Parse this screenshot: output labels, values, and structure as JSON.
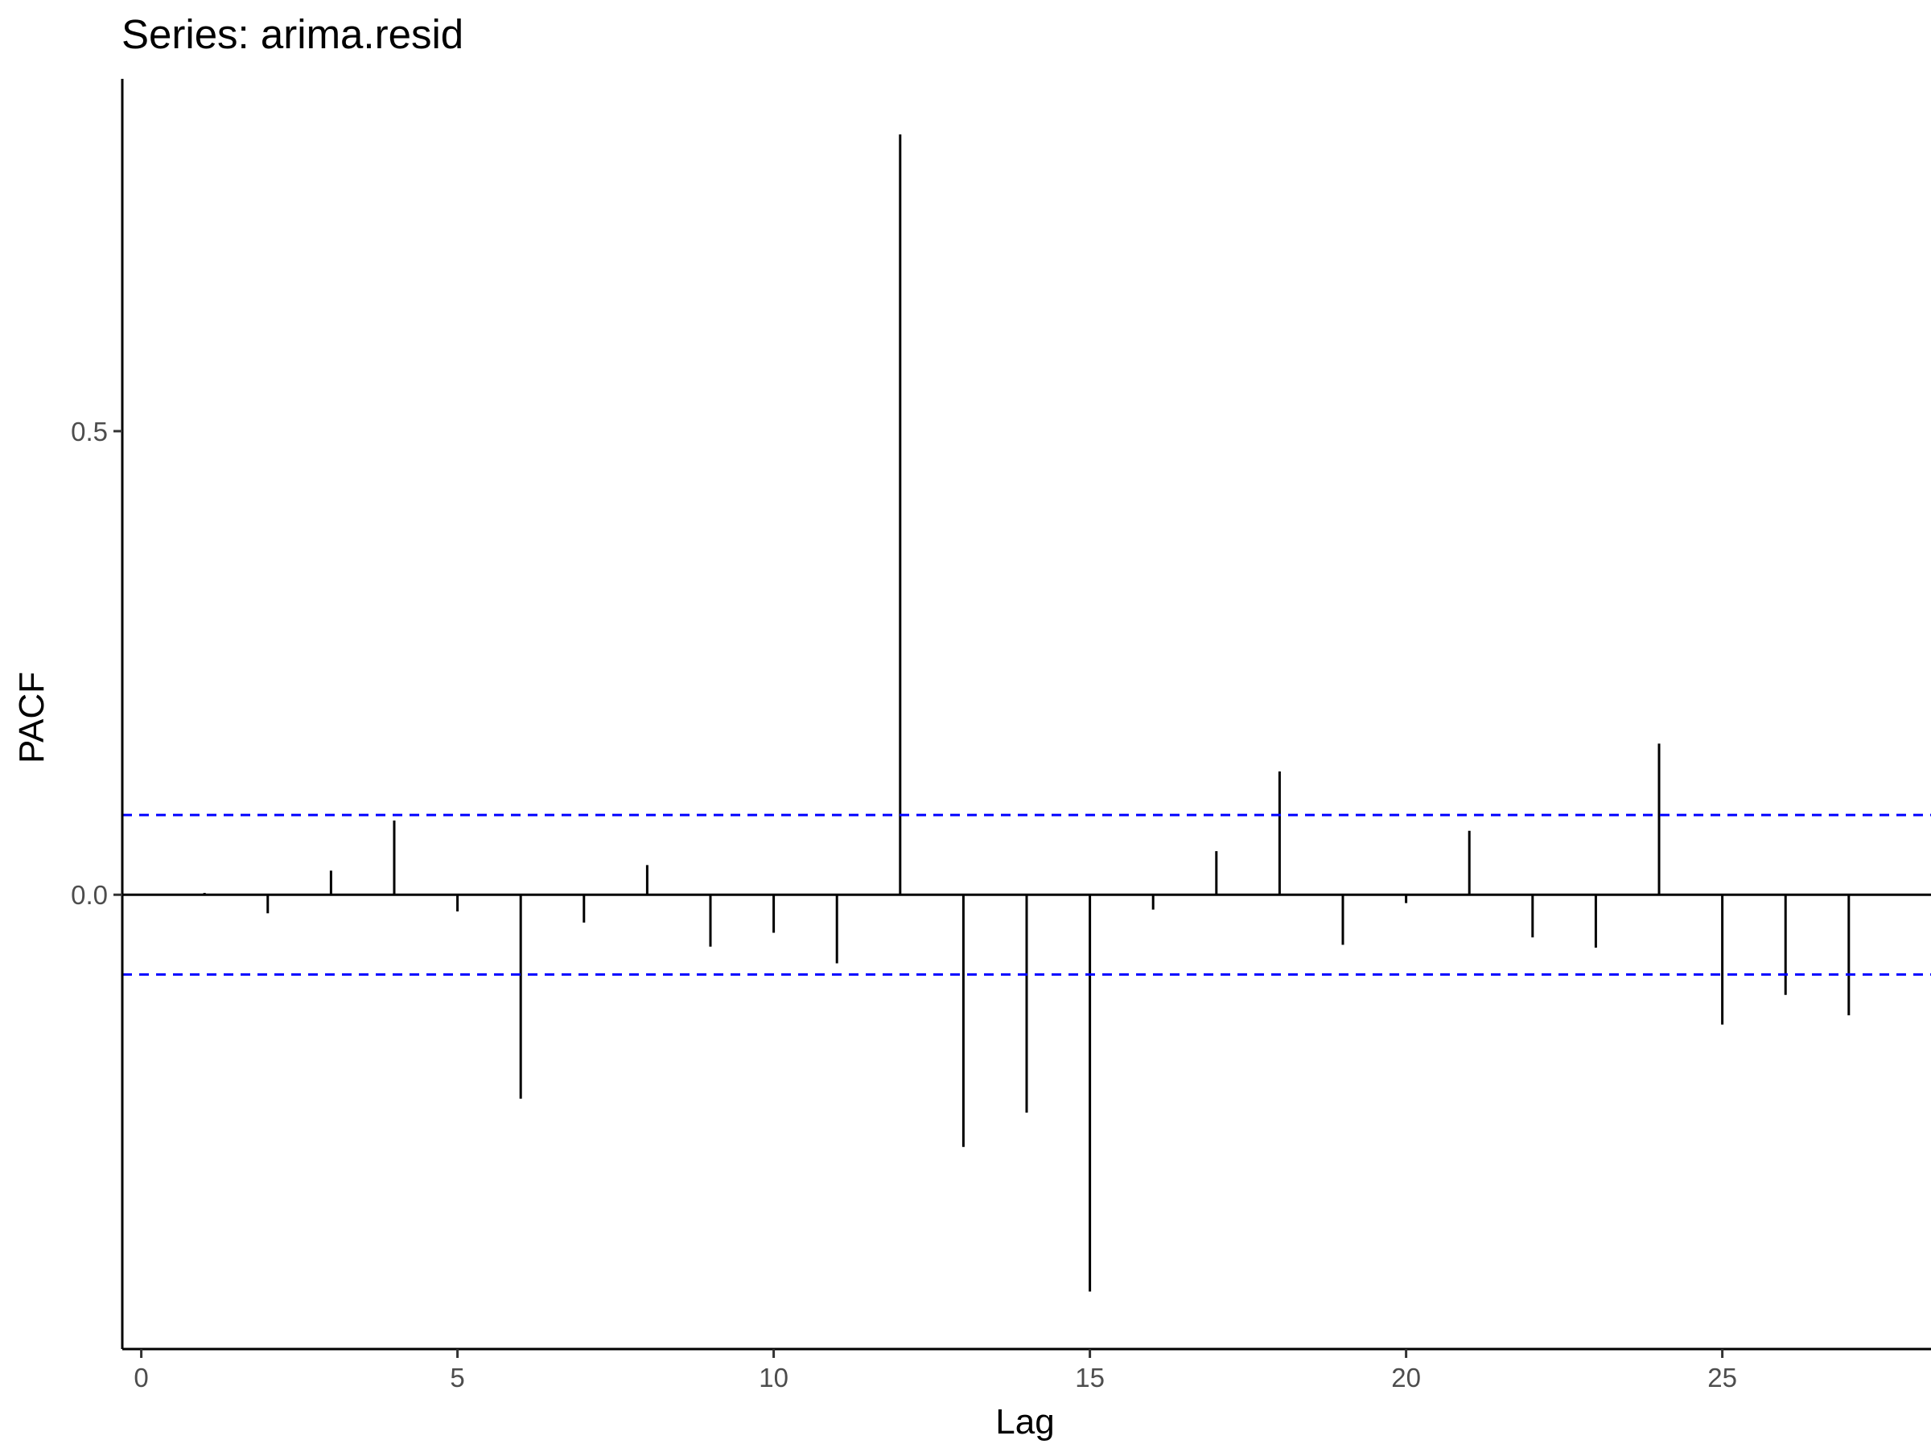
{
  "chart_data": {
    "type": "bar",
    "title": "Series: arima.resid",
    "xlabel": "Lag",
    "ylabel": "PACF",
    "xlim": [
      -0.3,
      28.3
    ],
    "ylim": [
      -0.49,
      0.88
    ],
    "x_ticks": [
      0,
      5,
      10,
      15,
      20,
      25
    ],
    "x_tick_labels": [
      "0",
      "5",
      "10",
      "15",
      "20",
      "25"
    ],
    "y_ticks": [
      0.0,
      0.5
    ],
    "y_tick_labels": [
      "0.0",
      "0.5"
    ],
    "grid": false,
    "legend": "none",
    "confidence_bound": 0.086,
    "colors": {
      "bars": "#000000",
      "confidence": "#0000ff",
      "baseline": "#000000"
    },
    "x": [
      1,
      2,
      3,
      4,
      5,
      6,
      7,
      8,
      9,
      10,
      11,
      12,
      13,
      14,
      15,
      16,
      17,
      18,
      19,
      20,
      21,
      22,
      23,
      24,
      25,
      26,
      27
    ],
    "values": [
      0.002,
      -0.02,
      0.026,
      0.08,
      -0.018,
      -0.22,
      -0.03,
      0.032,
      -0.056,
      -0.041,
      -0.074,
      0.82,
      -0.272,
      -0.235,
      -0.428,
      -0.016,
      0.047,
      0.133,
      -0.054,
      -0.009,
      0.069,
      -0.046,
      -0.057,
      0.163,
      -0.14,
      -0.108,
      -0.13
    ]
  }
}
